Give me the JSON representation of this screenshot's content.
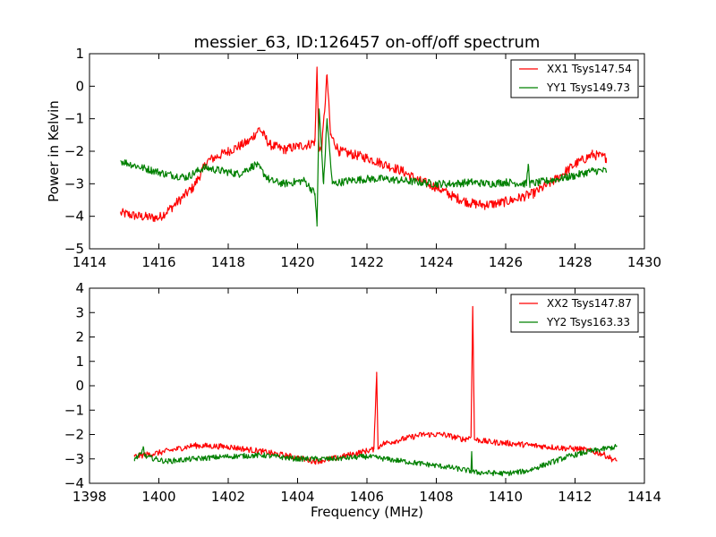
{
  "title": "messier_63, ID:126457 on-off/off spectrum",
  "chart_data": [
    {
      "type": "line",
      "title": "messier_63, ID:126457 on-off/off spectrum",
      "xlabel": "",
      "ylabel": "Power in Kelvin",
      "xlim": [
        1414,
        1430
      ],
      "ylim": [
        -5,
        1
      ],
      "xticks": [
        1414,
        1416,
        1418,
        1420,
        1422,
        1424,
        1426,
        1428,
        1430
      ],
      "yticks": [
        -5,
        -4,
        -3,
        -2,
        -1,
        0,
        1
      ],
      "grid": false,
      "legend_position": "top-right",
      "series": [
        {
          "name": "XX1 Tsys147.54",
          "color": "#ff0000",
          "noise": 0.15,
          "x": [
            1414.9,
            1415.4,
            1416.0,
            1416.4,
            1417.0,
            1417.4,
            1418.0,
            1418.6,
            1418.9,
            1419.2,
            1419.6,
            1420.0,
            1420.3,
            1420.5,
            1420.56,
            1420.62,
            1420.7,
            1420.85,
            1420.95,
            1421.2,
            1421.6,
            1422.0,
            1422.5,
            1423.0,
            1423.5,
            1424.0,
            1424.5,
            1425.0,
            1425.4,
            1425.8,
            1426.2,
            1426.8,
            1427.4,
            1428.0,
            1428.5,
            1428.9
          ],
          "y": [
            -3.9,
            -4.0,
            -4.05,
            -3.7,
            -3.1,
            -2.3,
            -2.0,
            -1.7,
            -1.3,
            -1.8,
            -1.95,
            -1.85,
            -1.8,
            -1.7,
            0.55,
            -2.0,
            -1.9,
            0.35,
            -1.5,
            -2.0,
            -2.1,
            -2.2,
            -2.4,
            -2.6,
            -2.9,
            -3.1,
            -3.4,
            -3.6,
            -3.65,
            -3.6,
            -3.5,
            -3.3,
            -2.9,
            -2.4,
            -2.1,
            -2.2
          ]
        },
        {
          "name": "YY1 Tsys149.73",
          "color": "#008000",
          "noise": 0.12,
          "x": [
            1414.9,
            1415.5,
            1416.2,
            1416.8,
            1417.3,
            1417.8,
            1418.3,
            1418.8,
            1419.2,
            1419.6,
            1420.2,
            1420.5,
            1420.56,
            1420.62,
            1420.75,
            1420.85,
            1421.0,
            1421.5,
            1422.0,
            1422.5,
            1423.0,
            1423.5,
            1424.0,
            1424.5,
            1425.0,
            1425.5,
            1426.0,
            1426.6,
            1426.65,
            1426.7,
            1427.0,
            1427.5,
            1428.0,
            1428.5,
            1428.9
          ],
          "y": [
            -2.3,
            -2.5,
            -2.7,
            -2.8,
            -2.5,
            -2.6,
            -2.7,
            -2.4,
            -2.9,
            -3.0,
            -2.9,
            -3.3,
            -4.3,
            -0.7,
            -3.0,
            -1.0,
            -3.0,
            -2.9,
            -2.85,
            -2.85,
            -2.9,
            -2.95,
            -3.0,
            -3.0,
            -2.95,
            -3.0,
            -2.95,
            -3.0,
            -2.4,
            -3.0,
            -2.95,
            -2.85,
            -2.75,
            -2.6,
            -2.6
          ]
        }
      ]
    },
    {
      "type": "line",
      "title": "",
      "xlabel": "Frequency (MHz)",
      "ylabel": "",
      "xlim": [
        1398,
        1414
      ],
      "ylim": [
        -4,
        4
      ],
      "xticks": [
        1398,
        1400,
        1402,
        1404,
        1406,
        1408,
        1410,
        1412,
        1414
      ],
      "yticks": [
        -4,
        -3,
        -2,
        -1,
        0,
        1,
        2,
        3,
        4
      ],
      "grid": false,
      "legend_position": "top-right",
      "series": [
        {
          "name": "XX2 Tsys147.87",
          "color": "#ff0000",
          "noise": 0.12,
          "x": [
            1399.3,
            1400.0,
            1401.0,
            1402.0,
            1403.0,
            1404.0,
            1404.5,
            1405.0,
            1405.6,
            1406.2,
            1406.28,
            1406.32,
            1406.4,
            1407.0,
            1407.6,
            1408.2,
            1408.8,
            1409.0,
            1409.05,
            1409.1,
            1409.5,
            1410.0,
            1410.8,
            1411.6,
            1412.2,
            1412.8,
            1413.2
          ],
          "y": [
            -2.9,
            -2.75,
            -2.45,
            -2.5,
            -2.7,
            -2.95,
            -3.1,
            -3.0,
            -2.8,
            -2.6,
            0.55,
            -2.6,
            -2.4,
            -2.2,
            -2.0,
            -2.0,
            -2.2,
            -2.1,
            3.25,
            -2.2,
            -2.3,
            -2.35,
            -2.45,
            -2.55,
            -2.6,
            -2.8,
            -3.1
          ]
        },
        {
          "name": "YY2 Tsys163.33",
          "color": "#008000",
          "noise": 0.11,
          "x": [
            1399.3,
            1399.5,
            1399.55,
            1399.6,
            1400.2,
            1401.0,
            1402.0,
            1403.0,
            1404.0,
            1405.0,
            1406.0,
            1406.8,
            1407.6,
            1408.4,
            1409.0,
            1409.02,
            1409.04,
            1409.1,
            1410.0,
            1410.6,
            1411.2,
            1411.8,
            1412.4,
            1413.2
          ],
          "y": [
            -3.0,
            -2.8,
            -2.5,
            -2.9,
            -3.1,
            -3.0,
            -2.9,
            -2.85,
            -3.0,
            -3.0,
            -2.9,
            -3.05,
            -3.2,
            -3.35,
            -3.5,
            -2.7,
            -3.5,
            -3.55,
            -3.6,
            -3.5,
            -3.2,
            -2.9,
            -2.7,
            -2.5
          ]
        }
      ]
    }
  ]
}
